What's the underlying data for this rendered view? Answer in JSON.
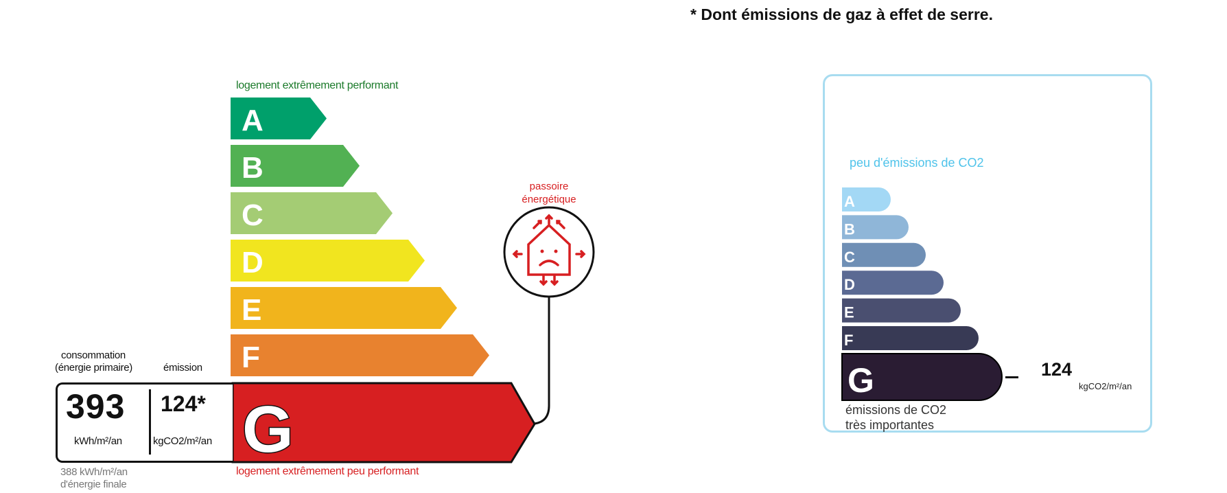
{
  "footnote": "* Dont émissions de gaz à effet de serre.",
  "energy_label": {
    "top_label": "logement extrêmement performant",
    "bottom_label": "logement extrêmement peu performant",
    "classes": [
      {
        "letter": "A",
        "color": "#00a06b"
      },
      {
        "letter": "B",
        "color": "#52b153"
      },
      {
        "letter": "C",
        "color": "#a4cc74"
      },
      {
        "letter": "D",
        "color": "#f1e51f"
      },
      {
        "letter": "E",
        "color": "#f1b41c"
      },
      {
        "letter": "F",
        "color": "#e8822f"
      },
      {
        "letter": "G",
        "color": "#d71f21"
      }
    ],
    "current_class": "G",
    "consumption_header": "consommation",
    "consumption_header2": "(énergie primaire)",
    "emission_header": "émission",
    "consumption_value": "393",
    "consumption_unit": "kWh/m²/an",
    "emission_value": "124*",
    "emission_unit": "kgCO2/m²/an",
    "final_energy_line1": "388 kWh/m²/an",
    "final_energy_line2": "d'énergie finale",
    "passoire_line1": "passoire",
    "passoire_line2": "énergétique",
    "passoire_icon": "sad-house-icon",
    "passoire_color": "#d71f21"
  },
  "co2_label": {
    "top_label": "peu d'émissions de CO2",
    "bottom_label_line1": "émissions de CO2",
    "bottom_label_line2": "très importantes",
    "classes": [
      {
        "letter": "A",
        "color": "#a3d8f5"
      },
      {
        "letter": "B",
        "color": "#8fb6d8"
      },
      {
        "letter": "C",
        "color": "#6f8fb5"
      },
      {
        "letter": "D",
        "color": "#5b6a93"
      },
      {
        "letter": "E",
        "color": "#4a4f70"
      },
      {
        "letter": "F",
        "color": "#383a55"
      },
      {
        "letter": "G",
        "color": "#2a1c33"
      }
    ],
    "current_class": "G",
    "value": "124",
    "unit": "kgCO2/m²/an",
    "border_color": "#a8dcf0"
  }
}
